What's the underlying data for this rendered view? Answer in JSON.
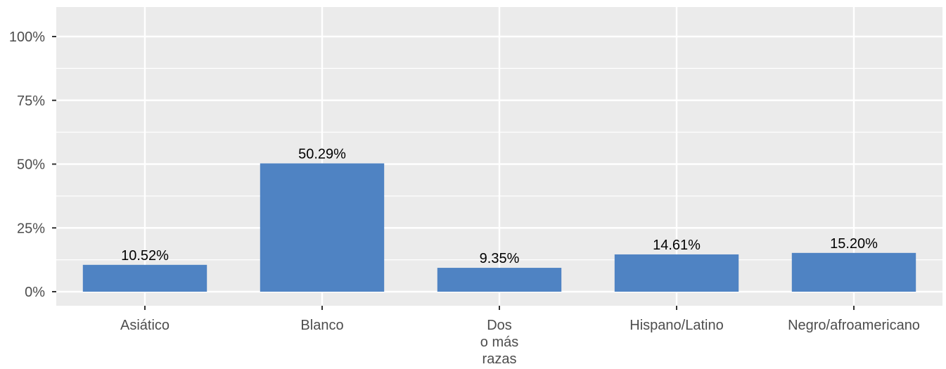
{
  "chart_data": {
    "type": "bar",
    "categories": [
      [
        "Asiático"
      ],
      [
        "Blanco"
      ],
      [
        "Dos",
        "o más",
        "razas"
      ],
      [
        "Hispano/Latino"
      ],
      [
        "Negro/afroamericano"
      ]
    ],
    "values": [
      10.52,
      50.29,
      9.35,
      14.61,
      15.2
    ],
    "data_labels": [
      "10.52%",
      "50.29%",
      "9.35%",
      "14.61%",
      "15.20%"
    ],
    "y_ticks": [
      0,
      25,
      50,
      75,
      100
    ],
    "y_tick_labels": [
      "0%",
      "25%",
      "50%",
      "75%",
      "100%"
    ],
    "ylim": [
      0,
      100
    ],
    "title": "",
    "xlabel": "",
    "ylabel": "",
    "grid": true,
    "colors": {
      "bar": "#4f83c3",
      "panel": "#ebebeb",
      "grid": "#ffffff",
      "axis_text": "#4d4d4d",
      "tick": "#333333"
    }
  }
}
